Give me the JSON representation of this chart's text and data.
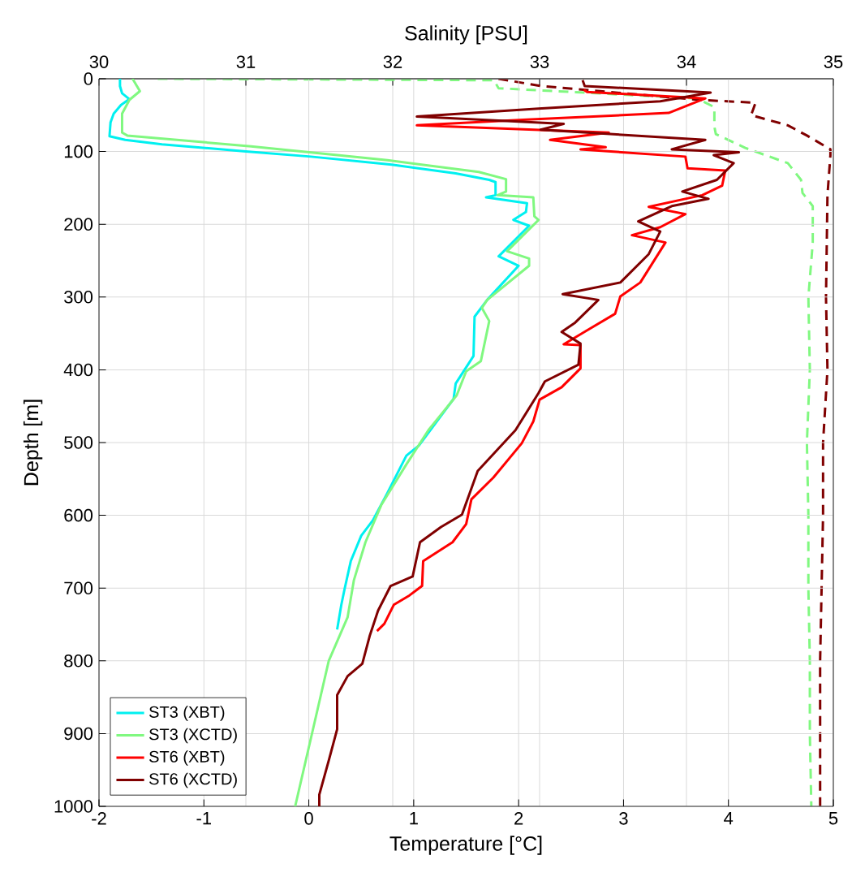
{
  "chart_data": {
    "type": "line",
    "xlabel": "Temperature [°C]",
    "x2label": "Salinity [PSU]",
    "ylabel": "Depth [m]",
    "xlim": [
      -2,
      5
    ],
    "xticks": [
      -2,
      -1,
      0,
      1,
      2,
      3,
      4,
      5
    ],
    "x2lim": [
      30,
      35
    ],
    "x2ticks": [
      30,
      31,
      32,
      33,
      34,
      35
    ],
    "ylim": [
      1000,
      0
    ],
    "yticks": [
      0,
      100,
      200,
      300,
      400,
      500,
      600,
      700,
      800,
      900,
      1000
    ],
    "grid": true,
    "legend": "bottom left",
    "series": [
      {
        "name": "ST3 (XBT)",
        "color": "#00f0f0",
        "line_style": "solid",
        "x": [
          -1.8,
          -1.8,
          -1.78,
          -1.71,
          -1.79,
          -1.86,
          -1.89,
          -1.9,
          -1.75,
          -1.4,
          -0.6,
          0.02,
          0.79,
          1.4,
          1.72,
          1.78,
          1.78,
          1.69,
          2.08,
          2.07,
          1.95,
          2.1,
          1.81,
          2.0,
          1.7,
          1.58,
          1.57,
          1.4,
          1.38,
          1.05,
          0.93,
          0.75,
          0.61,
          0.5,
          0.4,
          0.34,
          0.31,
          0.27
        ],
        "values": [
          0,
          10,
          20,
          28,
          36,
          48,
          60,
          79,
          84,
          90,
          100,
          107,
          118,
          130,
          139,
          142,
          160,
          163,
          171,
          183,
          194,
          202,
          244,
          257,
          304,
          327,
          381,
          419,
          440,
          504,
          518,
          569,
          607,
          628,
          663,
          702,
          723,
          757
        ]
      },
      {
        "name": "ST3 (XCTD)",
        "color": "#80f880",
        "line_style": "solid",
        "x": [
          -1.68,
          -1.61,
          -1.71,
          -1.78,
          -1.78,
          -1.73,
          -0.55,
          0.75,
          1.62,
          1.88,
          1.88,
          1.8,
          2.14,
          2.15,
          2.19,
          1.89,
          2.1,
          2.1,
          1.7,
          1.65,
          1.72,
          1.64,
          1.5,
          1.41,
          1.14,
          0.93,
          0.69,
          0.54,
          0.43,
          0.37,
          0.19,
          0.04,
          -0.13
        ],
        "values": [
          0,
          17,
          29,
          48,
          74,
          78,
          93,
          112,
          128,
          138,
          155,
          160,
          163,
          189,
          194,
          237,
          247,
          257,
          304,
          315,
          333,
          388,
          402,
          435,
          483,
          530,
          586,
          637,
          689,
          740,
          800,
          894,
          1000
        ]
      },
      {
        "name": "ST6 (XBT)",
        "color": "#ff0000",
        "line_style": "solid",
        "x": [
          2.62,
          2.65,
          3.78,
          3.43,
          2.08,
          1.03,
          2.86,
          2.3,
          2.83,
          2.59,
          3.59,
          3.61,
          3.97,
          3.94,
          3.75,
          3.24,
          3.59,
          3.35,
          3.08,
          3.4,
          3.16,
          2.97,
          2.92,
          2.65,
          2.43,
          2.59,
          2.59,
          2.41,
          2.2,
          2.14,
          2.03,
          1.76,
          1.55,
          1.5,
          1.37,
          1.09,
          1.08,
          0.96,
          0.81,
          0.72,
          0.65
        ],
        "values": [
          15,
          18,
          27,
          47,
          56,
          64,
          74,
          84,
          94,
          97,
          107,
          123,
          126,
          147,
          160,
          176,
          186,
          204,
          215,
          225,
          280,
          299,
          323,
          346,
          365,
          366,
          398,
          424,
          441,
          471,
          501,
          548,
          578,
          612,
          637,
          663,
          697,
          710,
          723,
          749,
          759
        ]
      },
      {
        "name": "ST6 (XCTD)",
        "color": "#800000",
        "line_style": "solid",
        "x": [
          2.61,
          2.63,
          3.83,
          3.35,
          2.19,
          1.03,
          2.43,
          2.21,
          3.78,
          3.46,
          4.1,
          3.86,
          4.05,
          3.89,
          3.56,
          3.81,
          3.46,
          3.14,
          3.35,
          3.24,
          2.97,
          2.42,
          2.76,
          2.54,
          2.41,
          2.59,
          2.57,
          2.25,
          2.19,
          1.97,
          1.61,
          1.46,
          1.26,
          1.06,
          0.99,
          0.78,
          0.66,
          0.58,
          0.51,
          0.37,
          0.27,
          0.27,
          0.19,
          0.1,
          0.1
        ],
        "values": [
          2,
          10,
          19,
          31,
          41,
          52,
          62,
          70,
          84,
          97,
          101,
          105,
          116,
          139,
          155,
          165,
          175,
          196,
          210,
          241,
          280,
          296,
          304,
          335,
          348,
          364,
          393,
          416,
          432,
          483,
          539,
          599,
          616,
          637,
          684,
          697,
          731,
          766,
          804,
          821,
          847,
          894,
          937,
          984,
          1000
        ]
      },
      {
        "color": "#80f880",
        "line_style": "dashed",
        "axis": "x2",
        "x": [
          30.4,
          32.69,
          32.72,
          34.07,
          34.19,
          34.19,
          34.2,
          34.4,
          34.69,
          34.78,
          34.79,
          34.86,
          34.86,
          34.83,
          34.84,
          34.82,
          34.83,
          34.83,
          34.84,
          34.84,
          34.85
        ],
        "values": [
          0,
          2,
          13,
          27,
          39,
          66,
          76,
          95,
          116,
          139,
          157,
          175,
          225,
          300,
          400,
          500,
          600,
          700,
          800,
          900,
          1000
        ]
      },
      {
        "color": "#800000",
        "line_style": "dashed",
        "axis": "x2",
        "x": [
          32.72,
          33.01,
          34.09,
          34.47,
          34.44,
          34.69,
          34.82,
          34.98,
          34.98,
          34.96,
          34.95,
          34.96,
          34.93,
          34.93,
          34.92,
          34.91,
          34.91
        ],
        "values": [
          0,
          10,
          29,
          33,
          50,
          64,
          78,
          97,
          105,
          160,
          300,
          400,
          500,
          600,
          700,
          800,
          1000
        ]
      }
    ]
  }
}
